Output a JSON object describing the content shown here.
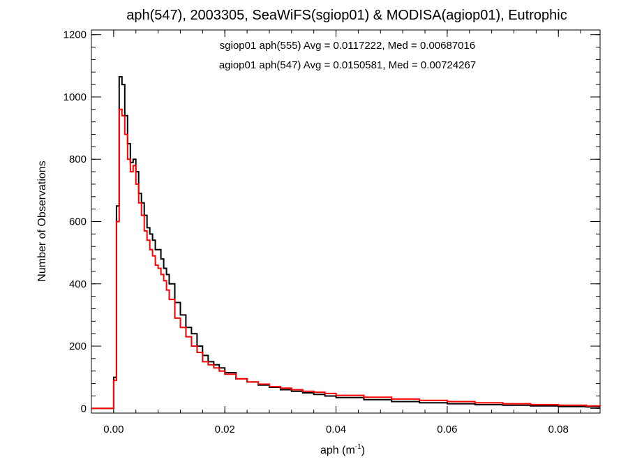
{
  "chart_data": {
    "type": "line",
    "title": "aph(547), 2003305, SeaWiFS(sgiop01) & MODISA(agiop01), Eutrophic",
    "xlabel": "aph (m",
    "xlabel_sup": "-1",
    "xlabel_suffix": ")",
    "ylabel": "Number of Observations",
    "xlim": [
      -0.004,
      0.0875
    ],
    "ylim": [
      -15,
      1215
    ],
    "x_ticks": [
      0.0,
      0.02,
      0.04,
      0.06,
      0.08
    ],
    "x_tick_labels": [
      "0.00",
      "0.02",
      "0.04",
      "0.06",
      "0.08"
    ],
    "y_ticks": [
      0,
      200,
      400,
      600,
      800,
      1000,
      1200
    ],
    "y_tick_labels": [
      "0",
      "200",
      "400",
      "600",
      "800",
      "1000",
      "1200"
    ],
    "step": "histogram",
    "legend_placement": "top-center",
    "grid": false,
    "series": [
      {
        "name": "sgiop01 aph(555) Avg = 0.0117222, Med = 0.00687016",
        "color": "#000000",
        "x": [
          -0.004,
          0.0,
          0.0005,
          0.001,
          0.0015,
          0.002,
          0.0025,
          0.003,
          0.0035,
          0.004,
          0.0045,
          0.005,
          0.0055,
          0.006,
          0.0065,
          0.007,
          0.0075,
          0.008,
          0.0085,
          0.009,
          0.0095,
          0.01,
          0.011,
          0.012,
          0.013,
          0.014,
          0.015,
          0.016,
          0.017,
          0.018,
          0.019,
          0.02,
          0.022,
          0.024,
          0.026,
          0.028,
          0.03,
          0.032,
          0.034,
          0.036,
          0.038,
          0.04,
          0.045,
          0.05,
          0.055,
          0.06,
          0.065,
          0.07,
          0.075,
          0.08,
          0.085,
          0.0875
        ],
        "y": [
          0,
          100,
          650,
          1065,
          1040,
          940,
          850,
          790,
          800,
          760,
          690,
          660,
          620,
          580,
          560,
          540,
          510,
          510,
          480,
          450,
          430,
          400,
          340,
          300,
          260,
          240,
          200,
          170,
          150,
          140,
          130,
          115,
          95,
          85,
          75,
          68,
          60,
          55,
          50,
          45,
          40,
          35,
          28,
          22,
          18,
          15,
          12,
          10,
          8,
          6,
          5,
          5
        ]
      },
      {
        "name": "agiop01 aph(547) Avg = 0.0150581, Med = 0.00724267",
        "color": "#ff0000",
        "x": [
          -0.004,
          0.0,
          0.0005,
          0.001,
          0.0015,
          0.002,
          0.0025,
          0.003,
          0.0035,
          0.004,
          0.0045,
          0.005,
          0.0055,
          0.006,
          0.0065,
          0.007,
          0.0075,
          0.008,
          0.0085,
          0.009,
          0.0095,
          0.01,
          0.011,
          0.012,
          0.013,
          0.014,
          0.015,
          0.016,
          0.017,
          0.018,
          0.019,
          0.02,
          0.022,
          0.024,
          0.026,
          0.028,
          0.03,
          0.032,
          0.034,
          0.036,
          0.038,
          0.04,
          0.045,
          0.05,
          0.055,
          0.06,
          0.065,
          0.07,
          0.075,
          0.08,
          0.085,
          0.0875
        ],
        "y": [
          0,
          90,
          600,
          960,
          940,
          880,
          800,
          760,
          780,
          720,
          660,
          620,
          570,
          540,
          510,
          490,
          460,
          450,
          430,
          410,
          380,
          350,
          290,
          260,
          230,
          200,
          180,
          150,
          140,
          130,
          120,
          110,
          95,
          85,
          78,
          70,
          65,
          60,
          55,
          52,
          48,
          42,
          36,
          30,
          26,
          22,
          18,
          15,
          12,
          10,
          8,
          7
        ]
      }
    ]
  }
}
